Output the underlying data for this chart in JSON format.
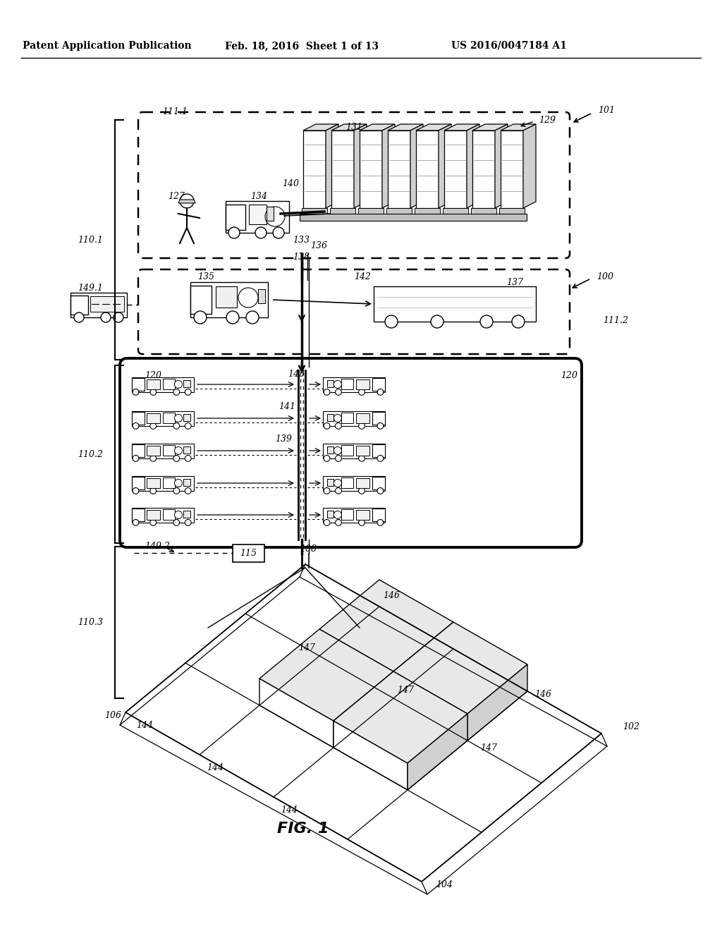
{
  "bg_color": "#ffffff",
  "header_left": "Patent Application Publication",
  "header_mid": "Feb. 18, 2016  Sheet 1 of 13",
  "header_right": "US 2016/0047184 A1",
  "fig_label": "FIG. 1"
}
